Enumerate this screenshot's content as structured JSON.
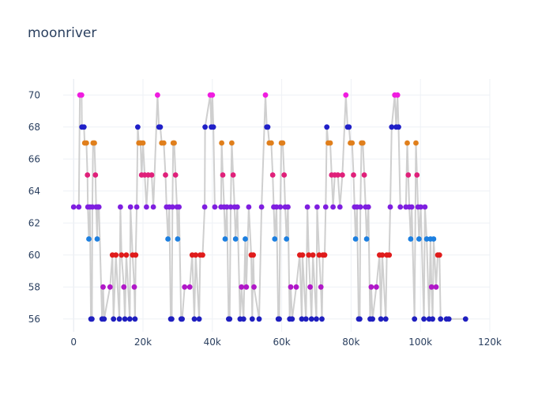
{
  "chart_data": {
    "type": "scatter",
    "title": "moonriver",
    "xlabel": "",
    "ylabel": "",
    "xlim": [
      -3000,
      120000
    ],
    "ylim": [
      55.2,
      71
    ],
    "x_ticks": [
      0,
      20000,
      40000,
      60000,
      80000,
      100000,
      120000
    ],
    "x_tick_labels": [
      "0",
      "20k",
      "40k",
      "60k",
      "80k",
      "100k",
      "120k"
    ],
    "y_ticks": [
      56,
      58,
      60,
      62,
      64,
      66,
      68,
      70
    ],
    "y_tick_labels": [
      "56",
      "58",
      "60",
      "62",
      "64",
      "66",
      "68",
      "70"
    ],
    "grid": true,
    "line_color": "#cfcfcf",
    "color_by_value": {
      "56": "#1f1fbf",
      "58": "#b018c8",
      "60": "#e01c1c",
      "61": "#1c7fe0",
      "63": "#7f1fe0",
      "65": "#e0207a",
      "67": "#e07f1c",
      "68": "#2020c8",
      "70": "#f01ce0"
    },
    "points": [
      [
        0,
        63
      ],
      [
        1500,
        63
      ],
      [
        1800,
        70
      ],
      [
        2300,
        70
      ],
      [
        2400,
        68
      ],
      [
        3000,
        68
      ],
      [
        3200,
        67
      ],
      [
        3700,
        67
      ],
      [
        4000,
        65
      ],
      [
        4100,
        63
      ],
      [
        4400,
        61
      ],
      [
        4700,
        63
      ],
      [
        5000,
        56
      ],
      [
        5300,
        56
      ],
      [
        5400,
        63
      ],
      [
        5600,
        67
      ],
      [
        6000,
        67
      ],
      [
        6300,
        65
      ],
      [
        6500,
        63
      ],
      [
        6800,
        61
      ],
      [
        7000,
        63
      ],
      [
        7300,
        63
      ],
      [
        8200,
        56
      ],
      [
        8500,
        58
      ],
      [
        8800,
        56
      ],
      [
        10500,
        58
      ],
      [
        11200,
        60
      ],
      [
        11500,
        56
      ],
      [
        12200,
        60
      ],
      [
        13200,
        56
      ],
      [
        13500,
        63
      ],
      [
        13800,
        60
      ],
      [
        14500,
        58
      ],
      [
        14800,
        56
      ],
      [
        15200,
        60
      ],
      [
        16200,
        56
      ],
      [
        16400,
        63
      ],
      [
        17000,
        60
      ],
      [
        17500,
        58
      ],
      [
        17700,
        56
      ],
      [
        17900,
        60
      ],
      [
        18200,
        63
      ],
      [
        18500,
        68
      ],
      [
        18800,
        67
      ],
      [
        19300,
        67
      ],
      [
        19600,
        65
      ],
      [
        20000,
        67
      ],
      [
        20500,
        65
      ],
      [
        21000,
        63
      ],
      [
        21500,
        65
      ],
      [
        22500,
        65
      ],
      [
        23000,
        63
      ],
      [
        24200,
        70
      ],
      [
        24600,
        68
      ],
      [
        25000,
        68
      ],
      [
        25400,
        67
      ],
      [
        26000,
        67
      ],
      [
        26500,
        65
      ],
      [
        26800,
        63
      ],
      [
        27200,
        61
      ],
      [
        27600,
        63
      ],
      [
        28000,
        56
      ],
      [
        28300,
        56
      ],
      [
        28500,
        63
      ],
      [
        28700,
        67
      ],
      [
        29000,
        67
      ],
      [
        29400,
        65
      ],
      [
        29800,
        63
      ],
      [
        30000,
        61
      ],
      [
        30400,
        63
      ],
      [
        31000,
        56
      ],
      [
        31300,
        56
      ],
      [
        32000,
        58
      ],
      [
        33500,
        58
      ],
      [
        34200,
        60
      ],
      [
        34800,
        56
      ],
      [
        35200,
        60
      ],
      [
        36200,
        56
      ],
      [
        36500,
        60
      ],
      [
        37200,
        60
      ],
      [
        37800,
        63
      ],
      [
        37900,
        68
      ],
      [
        39400,
        70
      ],
      [
        39700,
        68
      ],
      [
        40000,
        70
      ],
      [
        40300,
        68
      ],
      [
        40700,
        63
      ],
      [
        42500,
        63
      ],
      [
        42700,
        67
      ],
      [
        43000,
        65
      ],
      [
        43400,
        63
      ],
      [
        43700,
        61
      ],
      [
        44200,
        63
      ],
      [
        44700,
        56
      ],
      [
        45000,
        56
      ],
      [
        45300,
        63
      ],
      [
        45600,
        67
      ],
      [
        46000,
        65
      ],
      [
        46400,
        63
      ],
      [
        46700,
        61
      ],
      [
        47200,
        63
      ],
      [
        48000,
        56
      ],
      [
        48400,
        58
      ],
      [
        49000,
        56
      ],
      [
        49500,
        61
      ],
      [
        49800,
        58
      ],
      [
        50500,
        63
      ],
      [
        51200,
        60
      ],
      [
        51500,
        56
      ],
      [
        51800,
        60
      ],
      [
        52000,
        58
      ],
      [
        53500,
        56
      ],
      [
        54200,
        63
      ],
      [
        55300,
        70
      ],
      [
        55700,
        68
      ],
      [
        56000,
        68
      ],
      [
        56400,
        67
      ],
      [
        57000,
        67
      ],
      [
        57400,
        65
      ],
      [
        57700,
        63
      ],
      [
        58000,
        61
      ],
      [
        58500,
        63
      ],
      [
        59000,
        56
      ],
      [
        59300,
        56
      ],
      [
        59600,
        63
      ],
      [
        59900,
        67
      ],
      [
        60300,
        67
      ],
      [
        60700,
        65
      ],
      [
        61000,
        63
      ],
      [
        61400,
        61
      ],
      [
        61800,
        63
      ],
      [
        62300,
        56
      ],
      [
        62600,
        58
      ],
      [
        63000,
        56
      ],
      [
        64200,
        58
      ],
      [
        65200,
        60
      ],
      [
        65800,
        56
      ],
      [
        66000,
        60
      ],
      [
        67000,
        56
      ],
      [
        67400,
        63
      ],
      [
        67800,
        60
      ],
      [
        68200,
        58
      ],
      [
        68600,
        56
      ],
      [
        69000,
        60
      ],
      [
        70000,
        56
      ],
      [
        70200,
        63
      ],
      [
        70800,
        60
      ],
      [
        71300,
        58
      ],
      [
        71600,
        56
      ],
      [
        71900,
        60
      ],
      [
        72400,
        60
      ],
      [
        72700,
        63
      ],
      [
        73000,
        68
      ],
      [
        73400,
        67
      ],
      [
        74000,
        67
      ],
      [
        74400,
        65
      ],
      [
        74800,
        63
      ],
      [
        75300,
        65
      ],
      [
        76200,
        65
      ],
      [
        76800,
        63
      ],
      [
        77500,
        65
      ],
      [
        78500,
        70
      ],
      [
        79000,
        68
      ],
      [
        79400,
        68
      ],
      [
        79800,
        67
      ],
      [
        80300,
        67
      ],
      [
        80700,
        65
      ],
      [
        81000,
        63
      ],
      [
        81300,
        61
      ],
      [
        81700,
        63
      ],
      [
        82200,
        56
      ],
      [
        82500,
        56
      ],
      [
        82700,
        63
      ],
      [
        83000,
        67
      ],
      [
        83400,
        67
      ],
      [
        83800,
        65
      ],
      [
        84200,
        63
      ],
      [
        84500,
        61
      ],
      [
        85000,
        63
      ],
      [
        85500,
        56
      ],
      [
        85800,
        58
      ],
      [
        86200,
        56
      ],
      [
        87300,
        58
      ],
      [
        88200,
        60
      ],
      [
        88600,
        56
      ],
      [
        89000,
        60
      ],
      [
        90000,
        56
      ],
      [
        90300,
        60
      ],
      [
        91000,
        60
      ],
      [
        91300,
        63
      ],
      [
        91700,
        68
      ],
      [
        92600,
        70
      ],
      [
        93000,
        68
      ],
      [
        93400,
        70
      ],
      [
        93700,
        68
      ],
      [
        94200,
        63
      ],
      [
        95800,
        63
      ],
      [
        96200,
        67
      ],
      [
        96500,
        65
      ],
      [
        96800,
        63
      ],
      [
        97200,
        61
      ],
      [
        97500,
        63
      ],
      [
        98300,
        56
      ],
      [
        98700,
        67
      ],
      [
        99000,
        65
      ],
      [
        99300,
        63
      ],
      [
        99600,
        61
      ],
      [
        100100,
        63
      ],
      [
        101000,
        56
      ],
      [
        101300,
        63
      ],
      [
        101800,
        61
      ],
      [
        102500,
        56
      ],
      [
        102900,
        61
      ],
      [
        103200,
        58
      ],
      [
        103500,
        56
      ],
      [
        103800,
        61
      ],
      [
        104500,
        58
      ],
      [
        105000,
        60
      ],
      [
        105500,
        60
      ],
      [
        105800,
        56
      ],
      [
        107500,
        56
      ],
      [
        108200,
        56
      ],
      [
        113000,
        56
      ]
    ]
  }
}
